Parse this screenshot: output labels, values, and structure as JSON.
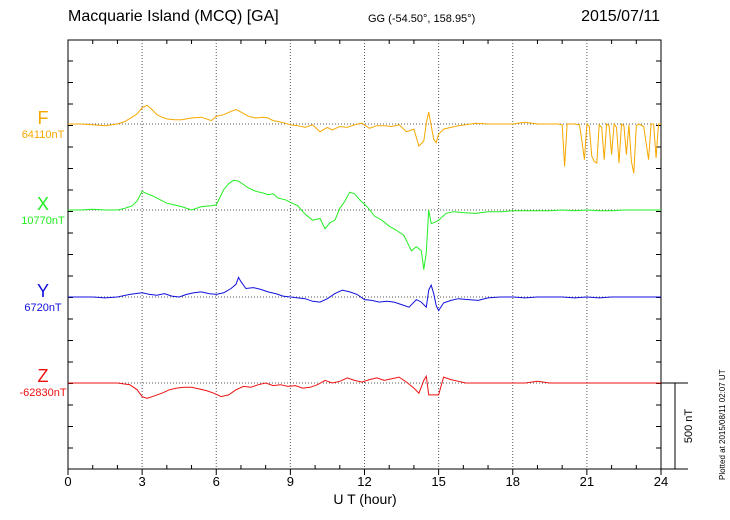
{
  "header": {
    "station": "Macquarie Island (MCQ)  [GA]",
    "coords": "GG (-54.50°, 158.95°)",
    "date": "2015/07/11"
  },
  "scale_label": "500 nT",
  "plotted_note": "Plotted at 2015/08/11 02:07 UT",
  "chart_data": {
    "type": "line",
    "title": "Macquarie Island (MCQ)  [GA]",
    "xlabel": "U T (hour)",
    "ylabel": "",
    "xlim": [
      0,
      24
    ],
    "xticks": [
      0,
      3,
      6,
      9,
      12,
      15,
      18,
      21,
      24
    ],
    "grid": "dotted vertical lines every 3 hours; dotted baseline per component",
    "scale_bar_nT": 500,
    "series": [
      {
        "name": "F",
        "baseline": "64110nT",
        "color": "#f5a800",
        "x": [
          0,
          0.5,
          1,
          1.5,
          2,
          2.3,
          2.6,
          2.8,
          3,
          3.2,
          3.4,
          3.6,
          3.8,
          4,
          4.3,
          4.6,
          5,
          5.4,
          5.8,
          6,
          6.3,
          6.6,
          6.8,
          7,
          7.3,
          7.6,
          7.9,
          8.1,
          8.3,
          8.5,
          8.8,
          9,
          9.3,
          9.6,
          9.9,
          10.2,
          10.5,
          10.7,
          11,
          11.3,
          11.6,
          11.9,
          12.2,
          12.5,
          12.8,
          13.1,
          13.4,
          13.7,
          14,
          14.2,
          14.4,
          14.5,
          14.6,
          14.7,
          14.8,
          14.9,
          15,
          15.2,
          15.5,
          15.8,
          16.1,
          16.5,
          17,
          17.5,
          18,
          18.5,
          19,
          19.5,
          19.8,
          20,
          20.1,
          20.2,
          20.5,
          20.7,
          20.8,
          20.9,
          21,
          21.1,
          21.2,
          21.3,
          21.4,
          21.5,
          21.6,
          21.7,
          21.8,
          21.9,
          22,
          22.1,
          22.2,
          22.3,
          22.4,
          22.5,
          22.6,
          22.7,
          22.8,
          22.9,
          23,
          23.1,
          23.3,
          23.5,
          23.6,
          23.7,
          23.8,
          23.9,
          24
        ],
        "values": [
          0,
          0,
          -5,
          -10,
          0,
          15,
          40,
          60,
          95,
          110,
          85,
          55,
          40,
          30,
          25,
          25,
          35,
          40,
          20,
          45,
          55,
          75,
          85,
          70,
          45,
          35,
          40,
          35,
          20,
          15,
          5,
          -5,
          -10,
          -20,
          -5,
          -45,
          -20,
          -35,
          -15,
          -20,
          -5,
          5,
          -25,
          -10,
          -10,
          -15,
          -5,
          -45,
          -30,
          -130,
          -100,
          5,
          70,
          -10,
          -90,
          -110,
          -60,
          -30,
          -20,
          -10,
          -5,
          5,
          0,
          0,
          0,
          10,
          0,
          0,
          0,
          -5,
          -250,
          0,
          0,
          -5,
          -100,
          -210,
          0,
          -15,
          -190,
          -220,
          -230,
          -5,
          -20,
          -210,
          0,
          -10,
          -180,
          0,
          -20,
          -230,
          0,
          -10,
          -180,
          -5,
          -220,
          -290,
          -10,
          0,
          -15,
          -210,
          0,
          0,
          -200,
          0,
          0
        ],
        "ylim": [
          -300,
          150
        ]
      },
      {
        "name": "X",
        "baseline": "10770nT",
        "color": "#22ee22",
        "x": [
          0,
          0.5,
          1,
          1.5,
          2,
          2.3,
          2.6,
          2.8,
          3,
          3.2,
          3.4,
          3.6,
          3.8,
          4,
          4.3,
          4.6,
          5,
          5.4,
          5.8,
          6,
          6.3,
          6.5,
          6.7,
          6.9,
          7.1,
          7.3,
          7.6,
          7.9,
          8.1,
          8.3,
          8.5,
          8.8,
          9,
          9.3,
          9.6,
          9.9,
          10.2,
          10.4,
          10.6,
          10.8,
          11,
          11.2,
          11.4,
          11.6,
          11.8,
          12.1,
          12.4,
          12.7,
          13,
          13.3,
          13.6,
          13.9,
          14.1,
          14.3,
          14.4,
          14.5,
          14.6,
          14.7,
          14.8,
          15,
          15.3,
          15.6,
          16,
          16.5,
          17,
          17.5,
          18,
          18.5,
          19,
          19.5,
          20,
          20.5,
          21,
          21.5,
          22,
          22.5,
          23,
          23.5,
          24
        ],
        "values": [
          0,
          0,
          5,
          0,
          0,
          10,
          25,
          55,
          110,
          95,
          85,
          70,
          55,
          40,
          30,
          20,
          0,
          20,
          25,
          30,
          120,
          155,
          175,
          170,
          150,
          130,
          110,
          100,
          90,
          95,
          70,
          60,
          45,
          25,
          -25,
          -60,
          -50,
          -110,
          -75,
          -60,
          10,
          50,
          105,
          95,
          60,
          20,
          -35,
          -60,
          -95,
          -120,
          -150,
          -240,
          -215,
          -240,
          -350,
          -250,
          0,
          -80,
          -75,
          -60,
          -20,
          -10,
          -15,
          -20,
          -10,
          -10,
          -5,
          -5,
          -5,
          -5,
          0,
          -5,
          0,
          -5,
          -5,
          0,
          0,
          0,
          0
        ],
        "ylim": [
          -380,
          200
        ]
      },
      {
        "name": "Y",
        "baseline": "6720nT",
        "color": "#1010dd",
        "x": [
          0,
          0.5,
          1,
          1.5,
          2,
          2.5,
          3,
          3.3,
          3.6,
          3.9,
          4.2,
          4.5,
          4.8,
          5.1,
          5.4,
          5.7,
          6,
          6.3,
          6.6,
          6.8,
          6.9,
          7,
          7.2,
          7.5,
          7.8,
          8.1,
          8.4,
          8.7,
          9,
          9.3,
          9.6,
          9.9,
          10.2,
          10.5,
          10.8,
          11.1,
          11.4,
          11.7,
          12,
          12.3,
          12.6,
          12.9,
          13.2,
          13.5,
          13.8,
          14.1,
          14.3,
          14.5,
          14.6,
          14.7,
          14.8,
          14.9,
          15,
          15.2,
          15.5,
          15.8,
          16.2,
          16.6,
          17,
          17.5,
          18,
          18.5,
          19,
          19.5,
          20,
          20.5,
          21,
          21.5,
          22,
          22.5,
          23,
          23.5,
          24
        ],
        "values": [
          0,
          0,
          0,
          -5,
          0,
          15,
          25,
          15,
          10,
          20,
          5,
          0,
          15,
          25,
          30,
          20,
          15,
          25,
          50,
          75,
          115,
          90,
          50,
          55,
          45,
          30,
          20,
          5,
          0,
          -5,
          -10,
          -25,
          -30,
          -10,
          20,
          40,
          30,
          15,
          -15,
          -20,
          -30,
          -25,
          -30,
          -45,
          -60,
          -15,
          -30,
          -60,
          40,
          70,
          20,
          -50,
          -80,
          -35,
          -20,
          -10,
          -15,
          -20,
          -5,
          0,
          0,
          -5,
          0,
          0,
          0,
          -5,
          0,
          -5,
          0,
          0,
          0,
          0,
          0
        ],
        "ylim": [
          -120,
          140
        ]
      },
      {
        "name": "Z",
        "baseline": "-62830nT",
        "color": "#ee1111",
        "x": [
          0,
          0.5,
          1,
          1.5,
          2,
          2.5,
          2.8,
          3,
          3.2,
          3.5,
          3.8,
          4.1,
          4.4,
          4.7,
          5,
          5.3,
          5.6,
          5.9,
          6.2,
          6.5,
          6.8,
          7.1,
          7.4,
          7.7,
          8,
          8.3,
          8.6,
          8.9,
          9.2,
          9.5,
          9.8,
          10.1,
          10.4,
          10.7,
          11,
          11.3,
          11.6,
          11.9,
          12.2,
          12.5,
          12.8,
          13.1,
          13.4,
          13.7,
          14,
          14.2,
          14.4,
          14.5,
          14.6,
          14.7,
          14.8,
          14.9,
          15,
          15.2,
          15.5,
          15.8,
          16.1,
          16.5,
          17,
          17.5,
          18,
          18.5,
          19,
          19.5,
          20,
          20.5,
          21,
          21.5,
          22,
          22.5,
          23,
          23.5,
          24
        ],
        "values": [
          0,
          0,
          0,
          0,
          0,
          -10,
          -40,
          -80,
          -90,
          -75,
          -60,
          -40,
          -30,
          -25,
          -25,
          -35,
          -45,
          -60,
          -80,
          -70,
          -40,
          -20,
          -25,
          -10,
          0,
          -15,
          -10,
          -20,
          -15,
          -30,
          -25,
          -10,
          15,
          0,
          10,
          30,
          15,
          5,
          20,
          30,
          15,
          25,
          35,
          5,
          -30,
          -60,
          15,
          40,
          -70,
          -70,
          -70,
          -70,
          -70,
          35,
          20,
          10,
          0,
          0,
          0,
          0,
          0,
          0,
          10,
          0,
          0,
          0,
          0,
          0,
          0,
          0,
          0,
          0,
          0
        ],
        "ylim": [
          -120,
          60
        ]
      }
    ]
  }
}
